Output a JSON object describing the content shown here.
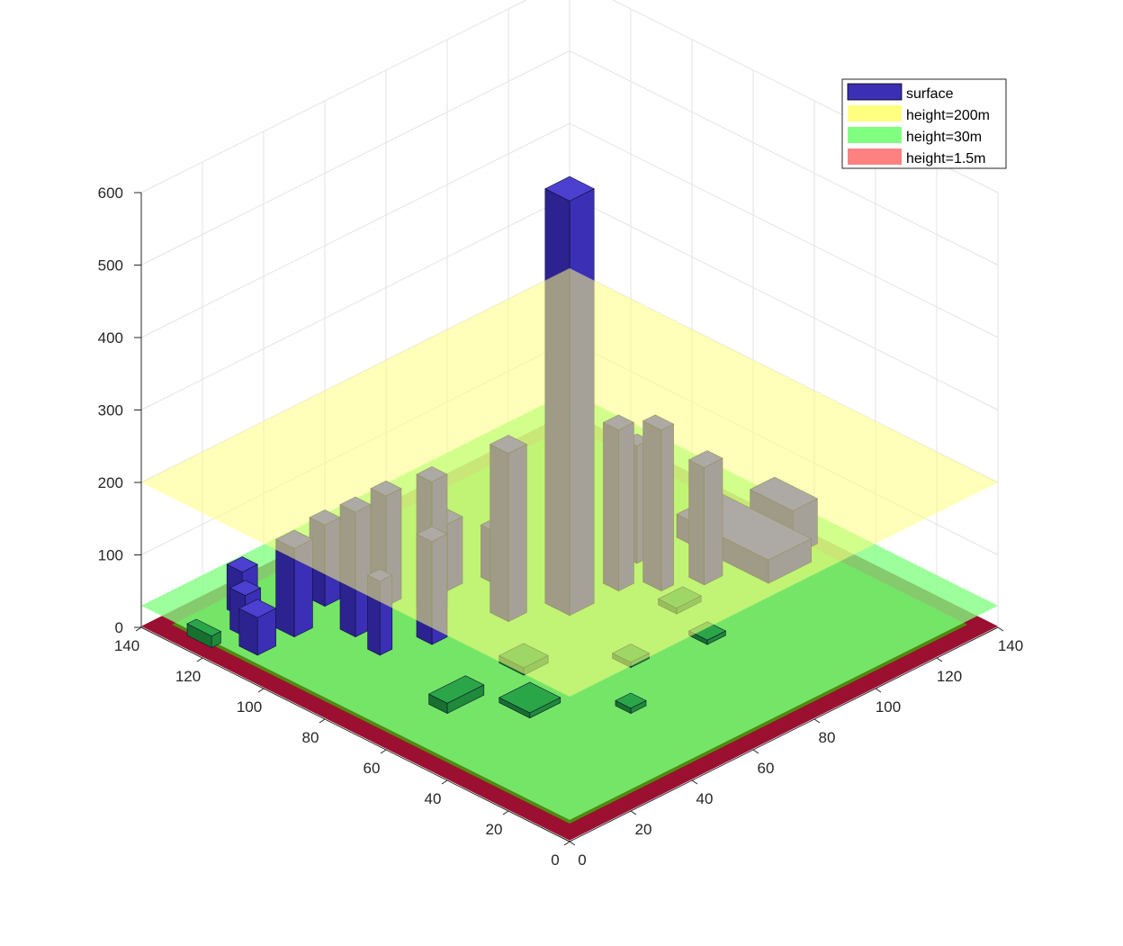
{
  "chart_data": {
    "type": "surface",
    "view": "3d",
    "title": "",
    "xlabel": "",
    "ylabel": "",
    "zlabel": "",
    "xlim": [
      0,
      140
    ],
    "ylim": [
      0,
      140
    ],
    "zlim": [
      0,
      600
    ],
    "x_ticks": [
      "0",
      "20",
      "40",
      "60",
      "80",
      "100",
      "120",
      "140"
    ],
    "y_ticks": [
      "0",
      "20",
      "40",
      "60",
      "80",
      "100",
      "120",
      "140"
    ],
    "z_ticks": [
      "0",
      "100",
      "200",
      "300",
      "400",
      "500",
      "600"
    ],
    "grid": true,
    "legend_position": "top-right",
    "series": [
      {
        "name": "surface",
        "kind": "building-surface",
        "color": "#3a2fb5"
      },
      {
        "name": "height=200m",
        "kind": "plane",
        "height": 200,
        "color": "#ffff80"
      },
      {
        "name": "height=30m",
        "kind": "plane",
        "height": 30,
        "color": "#80ff80"
      },
      {
        "name": "height=1.5m",
        "kind": "plane",
        "height": 1.5,
        "color": "#ff8080"
      }
    ],
    "buildings": [
      {
        "x": 72,
        "y": 72,
        "w": 8,
        "d": 8,
        "h": 580
      },
      {
        "x": 88,
        "y": 72,
        "w": 5,
        "d": 5,
        "h": 230
      },
      {
        "x": 60,
        "y": 80,
        "w": 6,
        "d": 6,
        "h": 240
      },
      {
        "x": 95,
        "y": 65,
        "w": 4,
        "d": 6,
        "h": 230
      },
      {
        "x": 104,
        "y": 60,
        "w": 6,
        "d": 5,
        "h": 170
      },
      {
        "x": 100,
        "y": 78,
        "w": 4,
        "d": 4,
        "h": 170
      },
      {
        "x": 50,
        "y": 95,
        "w": 5,
        "d": 5,
        "h": 190
      },
      {
        "x": 30,
        "y": 100,
        "w": 5,
        "d": 5,
        "h": 180
      },
      {
        "x": 40,
        "y": 85,
        "w": 5,
        "d": 5,
        "h": 150
      },
      {
        "x": 20,
        "y": 110,
        "w": 6,
        "d": 6,
        "h": 130
      },
      {
        "x": 35,
        "y": 115,
        "w": 5,
        "d": 5,
        "h": 120
      },
      {
        "x": 28,
        "y": 90,
        "w": 4,
        "d": 4,
        "h": 110
      },
      {
        "x": 45,
        "y": 105,
        "w": 5,
        "d": 5,
        "h": 160
      },
      {
        "x": 60,
        "y": 100,
        "w": 5,
        "d": 5,
        "h": 100
      },
      {
        "x": 18,
        "y": 125,
        "w": 5,
        "d": 5,
        "h": 70
      },
      {
        "x": 12,
        "y": 118,
        "w": 5,
        "d": 5,
        "h": 65
      },
      {
        "x": 8,
        "y": 110,
        "w": 6,
        "d": 6,
        "h": 60
      },
      {
        "x": 70,
        "y": 95,
        "w": 4,
        "d": 4,
        "h": 80
      },
      {
        "x": 115,
        "y": 50,
        "w": 14,
        "d": 30,
        "h": 40
      },
      {
        "x": 128,
        "y": 55,
        "w": 8,
        "d": 14,
        "h": 70
      },
      {
        "x": 20,
        "y": 60,
        "w": 12,
        "d": 6,
        "h": 22
      },
      {
        "x": 50,
        "y": 30,
        "w": 5,
        "d": 5,
        "h": 15
      },
      {
        "x": 32,
        "y": 45,
        "w": 10,
        "d": 10,
        "h": 15
      },
      {
        "x": 45,
        "y": 60,
        "w": 8,
        "d": 8,
        "h": 18
      },
      {
        "x": 65,
        "y": 45,
        "w": 6,
        "d": 6,
        "h": 15
      },
      {
        "x": 85,
        "y": 40,
        "w": 6,
        "d": 6,
        "h": 14
      },
      {
        "x": 90,
        "y": 55,
        "w": 8,
        "d": 6,
        "h": 16
      },
      {
        "x": 3,
        "y": 120,
        "w": 3,
        "d": 8,
        "h": 24
      }
    ]
  }
}
